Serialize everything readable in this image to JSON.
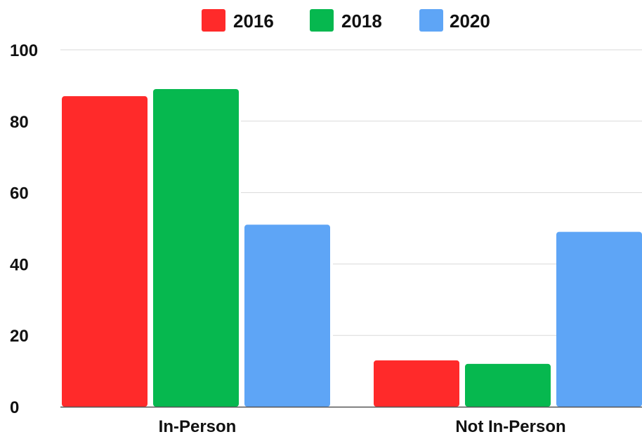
{
  "chart_data": {
    "type": "bar",
    "categories": [
      "In-Person",
      "Not In-Person"
    ],
    "series": [
      {
        "name": "2016",
        "color": "#ff2a2a",
        "values": [
          87,
          13
        ]
      },
      {
        "name": "2018",
        "color": "#06b84f",
        "values": [
          89,
          12
        ]
      },
      {
        "name": "2020",
        "color": "#5ea5f6",
        "values": [
          51,
          49
        ]
      }
    ],
    "title": "",
    "xlabel": "",
    "ylabel": "",
    "ylim": [
      0,
      100
    ],
    "yticks": [
      0,
      20,
      40,
      60,
      80,
      100
    ],
    "grid": true,
    "legend_position": "top-center"
  }
}
